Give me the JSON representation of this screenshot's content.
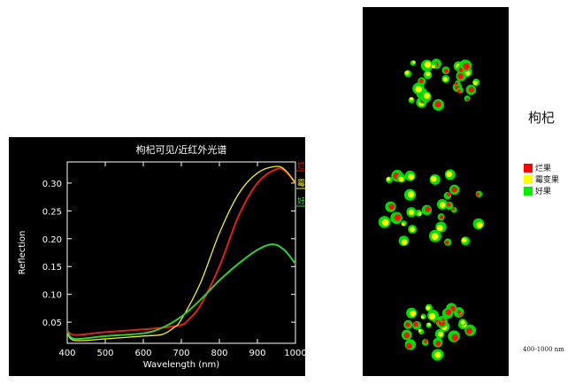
{
  "chart_data": {
    "type": "line",
    "title": "枸杞可见/近红外光谱",
    "xlabel": "Wavelength (nm)",
    "ylabel": "Reflection",
    "xlim": [
      400,
      1000
    ],
    "ylim": [
      0.012,
      0.338
    ],
    "xticks": [
      400,
      500,
      600,
      700,
      800,
      900,
      1000
    ],
    "yticks": [
      0.05,
      0.1,
      0.15,
      0.2,
      0.25,
      0.3
    ],
    "ytick_labels": [
      "0.05",
      "0.10",
      "0.15",
      "0.20",
      "0.25",
      "0.30"
    ],
    "grid": false,
    "legend_placement": "top-right outside",
    "background": "#000000",
    "series": [
      {
        "name": "烂果",
        "color": "#e02020",
        "x": [
          400,
          420,
          500,
          600,
          650,
          700,
          720,
          750,
          800,
          850,
          900,
          950,
          975,
          1000
        ],
        "y": [
          0.035,
          0.027,
          0.032,
          0.037,
          0.04,
          0.045,
          0.055,
          0.08,
          0.15,
          0.24,
          0.3,
          0.325,
          0.32,
          0.3
        ]
      },
      {
        "name": "霉变果",
        "color": "#f0f030",
        "x": [
          400,
          420,
          500,
          600,
          650,
          680,
          700,
          750,
          800,
          850,
          900,
          950,
          975,
          1000
        ],
        "y": [
          0.03,
          0.017,
          0.02,
          0.025,
          0.028,
          0.04,
          0.055,
          0.12,
          0.21,
          0.28,
          0.318,
          0.33,
          0.322,
          0.3
        ]
      },
      {
        "name": "好果",
        "color": "#30d030",
        "x": [
          400,
          420,
          500,
          600,
          650,
          700,
          750,
          800,
          850,
          900,
          940,
          970,
          1000
        ],
        "y": [
          0.033,
          0.02,
          0.025,
          0.03,
          0.04,
          0.06,
          0.09,
          0.125,
          0.155,
          0.18,
          0.19,
          0.18,
          0.155
        ]
      }
    ]
  },
  "side": {
    "title": "枸杞",
    "legend": [
      {
        "label": "烂果",
        "color": "#ff0000"
      },
      {
        "label": "霉变果",
        "color": "#ffff00"
      },
      {
        "label": "好果",
        "color": "#00ee00"
      }
    ],
    "range": "400-1000 nm"
  }
}
